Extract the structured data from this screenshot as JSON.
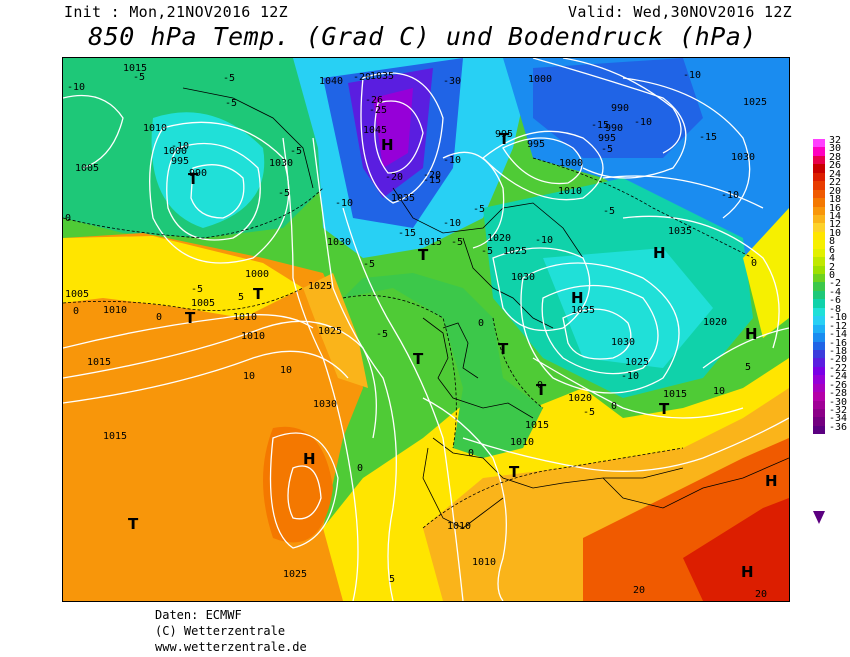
{
  "header": {
    "init": "Init : Mon,21NOV2016 12Z",
    "valid": "Valid: Wed,30NOV2016 12Z",
    "title": "850 hPa Temp. (Grad C) und Bodendruck (hPa)"
  },
  "legend": [
    {
      "value": "32",
      "color": "#ff40ff"
    },
    {
      "value": "30",
      "color": "#ff00c0"
    },
    {
      "value": "28",
      "color": "#e8004a"
    },
    {
      "value": "26",
      "color": "#c80000"
    },
    {
      "value": "24",
      "color": "#dc1e00"
    },
    {
      "value": "22",
      "color": "#e83c00"
    },
    {
      "value": "20",
      "color": "#f05a00"
    },
    {
      "value": "18",
      "color": "#f47800"
    },
    {
      "value": "16",
      "color": "#f8960a"
    },
    {
      "value": "14",
      "color": "#fab41a"
    },
    {
      "value": "12",
      "color": "#fdd22a"
    },
    {
      "value": "10",
      "color": "#ffe500"
    },
    {
      "value": "8",
      "color": "#f6f000"
    },
    {
      "value": "6",
      "color": "#e2f000"
    },
    {
      "value": "4",
      "color": "#c0e800"
    },
    {
      "value": "2",
      "color": "#9ee000"
    },
    {
      "value": "0",
      "color": "#6ed21e"
    },
    {
      "value": "-2",
      "color": "#3cc84a"
    },
    {
      "value": "-4",
      "color": "#1ec878"
    },
    {
      "value": "-6",
      "color": "#10d2aa"
    },
    {
      "value": "-8",
      "color": "#20e0d8"
    },
    {
      "value": "-10",
      "color": "#28d0f4"
    },
    {
      "value": "-12",
      "color": "#1eb0f6"
    },
    {
      "value": "-14",
      "color": "#1a8cf0"
    },
    {
      "value": "-16",
      "color": "#2064e6"
    },
    {
      "value": "-18",
      "color": "#3c3cdc"
    },
    {
      "value": "-20",
      "color": "#5a1ee0"
    },
    {
      "value": "-22",
      "color": "#7a00e6"
    },
    {
      "value": "-24",
      "color": "#9600d8"
    },
    {
      "value": "-26",
      "color": "#a800c0"
    },
    {
      "value": "-28",
      "color": "#b400a8"
    },
    {
      "value": "-30",
      "color": "#a00096"
    },
    {
      "value": "-32",
      "color": "#8c0088"
    },
    {
      "value": "-34",
      "color": "#740080"
    },
    {
      "value": "-36",
      "color": "#5b0080"
    }
  ],
  "isobar_labels": [
    "1015",
    "1040",
    "1035",
    "1010",
    "1000",
    "995",
    "990",
    "1005",
    "1030",
    "1045",
    "1005",
    "1010",
    "1000",
    "1005",
    "1010",
    "1010",
    "1015",
    "1025",
    "1030",
    "1025",
    "1015",
    "1035",
    "1020",
    "1030",
    "1025",
    "1035",
    "1030",
    "1025",
    "1020",
    "1015",
    "1020",
    "1015",
    "1025",
    "1010",
    "1010",
    "1010",
    "1015",
    "1010",
    "1030",
    "995",
    "995",
    "1000",
    "990",
    "990",
    "995",
    "1000",
    "1025",
    "1030",
    "1035"
  ],
  "temp_labels": [
    "-5",
    "-10",
    "-5",
    "-5",
    "-10",
    "0",
    "-20",
    "-26",
    "-25",
    "-30",
    "-20",
    "-20",
    "-15",
    "-10",
    "-10",
    "-5",
    "-5",
    "-10",
    "-15",
    "-5",
    "-5",
    "-10",
    "-5",
    "0",
    "-5",
    "0",
    "-5",
    "0",
    "5",
    "0",
    "10",
    "10",
    "5",
    "10",
    "0",
    "5",
    "0",
    "0",
    "-5",
    "-15",
    "-10",
    "-5",
    "-5",
    "-10",
    "20",
    "20",
    "0",
    "-15",
    "-10",
    "-5",
    "-10"
  ],
  "pressure_centers": {
    "H": "H",
    "T": "T"
  },
  "footer": {
    "source": "Daten: ECMWF",
    "copyright": "(C) Wetterzentrale",
    "url": "www.wetterzentrale.de"
  }
}
